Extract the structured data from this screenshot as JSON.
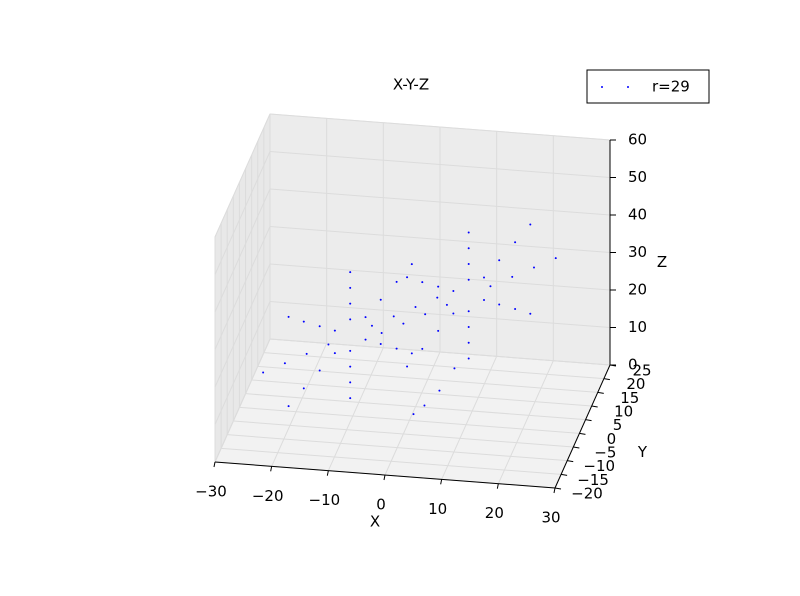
{
  "chart_data": {
    "type": "scatter3d",
    "title": "X-Y-Z",
    "xlabel": "X",
    "ylabel": "Y",
    "zlabel": "Z",
    "xlim": [
      -30,
      30
    ],
    "ylim": [
      -20,
      25
    ],
    "zlim": [
      0,
      60
    ],
    "xticks": [
      {
        "value": -30,
        "label": "−30"
      },
      {
        "value": -20,
        "label": "−20"
      },
      {
        "value": -10,
        "label": "−10"
      },
      0,
      10,
      20,
      30
    ],
    "yticks": [
      {
        "value": -20,
        "label": "−20"
      },
      {
        "value": -15,
        "label": "−15"
      },
      {
        "value": -10,
        "label": "−10"
      },
      {
        "value": -5,
        "label": "−5"
      },
      0,
      5,
      10,
      15,
      20,
      25
    ],
    "zticks": [
      0,
      10,
      20,
      30,
      40,
      50,
      60
    ],
    "legend": "upper right",
    "grid": true,
    "series": [
      {
        "name": "r=29",
        "color": "#0000ff",
        "x": [
          -5.6,
          -6.5,
          -8.6,
          -10.7,
          -11.6,
          -10.7,
          -8.6,
          -6.5,
          -2.6,
          -4.4,
          -8.6,
          -12.8,
          -14.6,
          -12.8,
          -8.6,
          -4.4,
          0.4,
          -2.2,
          -8.6,
          -15,
          -17.6,
          -15,
          -8.6,
          -2.2,
          3.4,
          -0.1,
          -8.6,
          -17.1,
          -20.6,
          -17.1,
          -8.6,
          -0.1,
          5.6,
          6.5,
          8.6,
          10.7,
          11.6,
          10.7,
          8.6,
          6.5,
          2.6,
          4.4,
          8.6,
          12.8,
          14.6,
          12.8,
          8.6,
          4.4,
          -0.4,
          2.2,
          8.6,
          15,
          17.6,
          15,
          8.6,
          2.2,
          -3.4,
          0.1,
          8.6,
          17.1,
          20.6,
          17.1,
          8.6,
          0.1,
          0.5,
          2,
          4,
          6
        ],
        "y": [
          -4.7,
          -5.8,
          -8.6,
          -11.4,
          -12.5,
          -11.4,
          -8.6,
          -5.8,
          -0.8,
          -3.1,
          -8.6,
          -14.1,
          -16.4,
          -14.1,
          -8.6,
          -3.1,
          3.1,
          -0.3,
          -8.6,
          -16.9,
          -20.3,
          -16.9,
          -8.6,
          -0.3,
          7,
          2.4,
          -8.6,
          -19.6,
          -24.2,
          -19.6,
          -8.6,
          2.4,
          4.7,
          5.8,
          8.6,
          11.4,
          12.5,
          11.4,
          8.6,
          5.8,
          0.8,
          3.1,
          8.6,
          14.1,
          16.4,
          14.1,
          8.6,
          3.1,
          -3.1,
          0.3,
          8.6,
          16.9,
          20.3,
          16.9,
          8.6,
          0.3,
          -7,
          -2.4,
          8.6,
          19.6,
          24.2,
          19.6,
          8.6,
          -2.4,
          1,
          3,
          6,
          9
        ],
        "z": [
          28,
          31,
          32.2,
          31,
          28,
          25,
          23.8,
          25,
          28,
          33.9,
          36.4,
          33.9,
          28,
          22.1,
          19.6,
          22.1,
          28,
          36.9,
          40.6,
          36.9,
          28,
          19.1,
          15.4,
          19.1,
          28,
          39.9,
          44.8,
          39.9,
          28,
          16.1,
          11.2,
          16.1,
          28,
          31,
          32.2,
          31,
          28,
          25,
          23.8,
          25,
          28,
          33.9,
          36.4,
          33.9,
          28,
          22.1,
          19.6,
          22.1,
          28,
          36.9,
          40.6,
          36.9,
          28,
          19.1,
          15.4,
          19.1,
          28,
          39.9,
          44.8,
          39.9,
          28,
          16.1,
          11.2,
          16.1,
          1,
          2,
          4,
          8
        ]
      }
    ]
  }
}
